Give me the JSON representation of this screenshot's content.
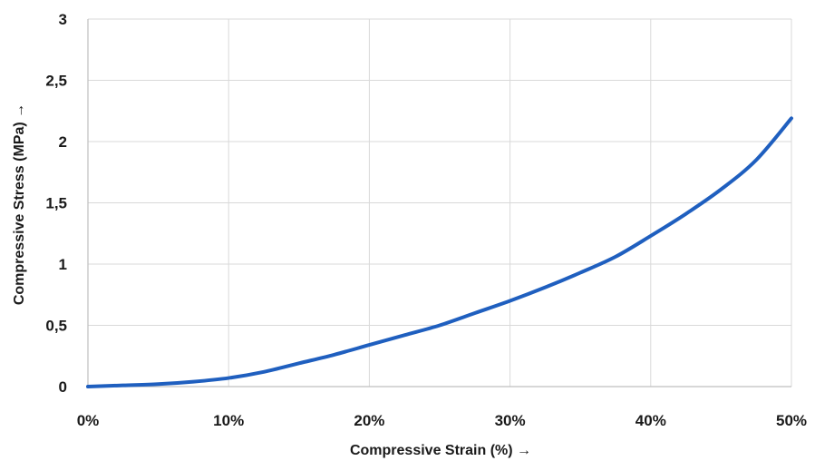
{
  "chart_data": {
    "type": "line",
    "title": "",
    "xlabel": "Compressive Strain (%) →",
    "ylabel": "Compressive Stress (MPa) →",
    "xlim": [
      0,
      50
    ],
    "ylim": [
      0,
      3
    ],
    "grid": true,
    "x_ticks": [
      {
        "value": 0,
        "label": "0%"
      },
      {
        "value": 10,
        "label": "10%"
      },
      {
        "value": 20,
        "label": "20%"
      },
      {
        "value": 30,
        "label": "30%"
      },
      {
        "value": 40,
        "label": "40%"
      },
      {
        "value": 50,
        "label": "50%"
      }
    ],
    "y_ticks": [
      {
        "value": 0,
        "label": "0"
      },
      {
        "value": 0.5,
        "label": "0,5"
      },
      {
        "value": 1,
        "label": "1"
      },
      {
        "value": 1.5,
        "label": "1,5"
      },
      {
        "value": 2,
        "label": "2"
      },
      {
        "value": 2.5,
        "label": "2,5"
      },
      {
        "value": 3,
        "label": "3"
      }
    ],
    "series": [
      {
        "color": "#1f5fbf",
        "x": [
          0,
          2.5,
          5,
          7.5,
          10,
          12.5,
          15,
          17.5,
          20,
          22.5,
          25,
          27.5,
          30,
          32.5,
          35,
          37.5,
          40,
          42.5,
          45,
          47.5,
          50
        ],
        "y": [
          0,
          0.01,
          0.02,
          0.04,
          0.07,
          0.12,
          0.19,
          0.26,
          0.34,
          0.42,
          0.5,
          0.6,
          0.7,
          0.81,
          0.93,
          1.06,
          1.23,
          1.41,
          1.61,
          1.85,
          2.19
        ]
      }
    ]
  }
}
